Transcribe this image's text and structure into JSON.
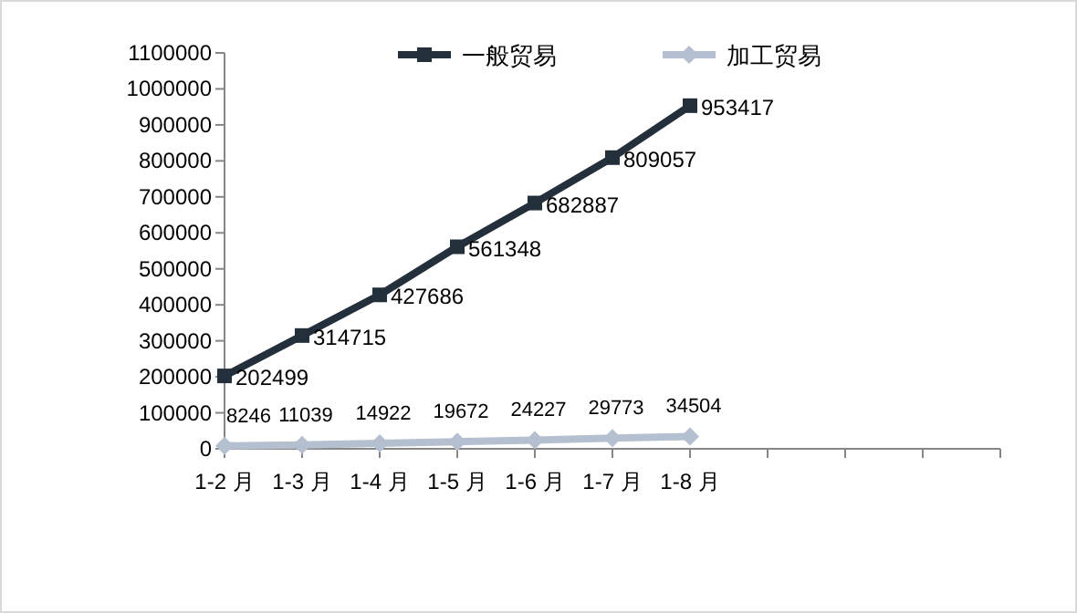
{
  "chart_data": {
    "type": "line",
    "categories": [
      "1-2 月",
      "1-3 月",
      "1-4 月",
      "1-5 月",
      "1-6 月",
      "1-7 月",
      "1-8 月",
      null,
      null,
      null,
      null
    ],
    "series": [
      {
        "name": "一般贸易",
        "color": "#242f3c",
        "marker": "square",
        "values": [
          202499,
          314715,
          427686,
          561348,
          682887,
          809057,
          953417,
          null,
          null,
          null,
          null
        ]
      },
      {
        "name": "加工贸易",
        "color": "#b4bfcf",
        "marker": "diamond",
        "values": [
          8246,
          11039,
          14922,
          19672,
          24227,
          29773,
          34504,
          null,
          null,
          null,
          null
        ]
      }
    ],
    "ylim": [
      0,
      1100000
    ],
    "yticks": [
      0,
      100000,
      200000,
      300000,
      400000,
      500000,
      600000,
      700000,
      800000,
      900000,
      1000000,
      1100000
    ],
    "grid": false,
    "legend": "top",
    "data_labels": true,
    "line_style": "solid"
  }
}
